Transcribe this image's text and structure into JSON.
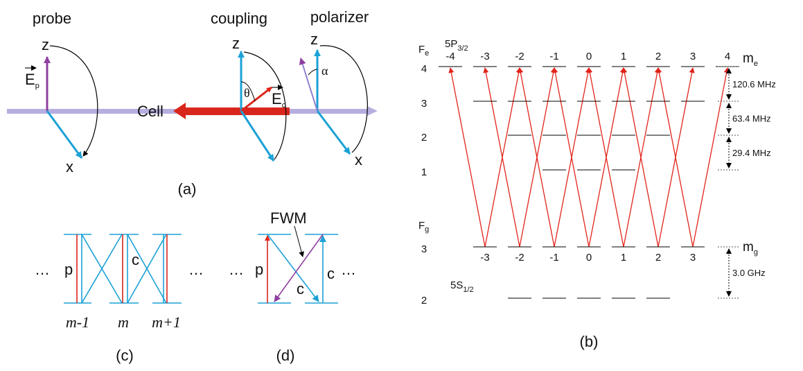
{
  "panel_a": {
    "probe": "probe",
    "coupling": "coupling",
    "polarizer": "polarizer",
    "z_probe": "z",
    "x_probe": "x",
    "z_coupling": "z",
    "z_polarizer": "z",
    "x_polarizer": "x",
    "e_probe": {
      "main": "E",
      "sub": "p"
    },
    "e_coupling": {
      "main": "E",
      "sub": "c"
    },
    "theta": "θ",
    "alpha": "α",
    "cell": "Cell",
    "label": "(a)"
  },
  "panel_c": {
    "dots_left": "…",
    "p": "p",
    "c": "c",
    "dots_right": "…",
    "m_minus": "m-1",
    "m": "m",
    "m_plus": "m+1",
    "label": "(c)"
  },
  "panel_d": {
    "fwm": "FWM",
    "dots_left": "…",
    "p": "p",
    "c_diag": "c",
    "c_right": "c",
    "dots_right": "…",
    "label": "(d)"
  },
  "panel_b": {
    "fe": {
      "main": "F",
      "sub": "e"
    },
    "state_e": {
      "main": "5P",
      "sub": "3/2"
    },
    "me": {
      "main": "m",
      "sub": "e"
    },
    "fg": {
      "main": "F",
      "sub": "g"
    },
    "mg": {
      "main": "m",
      "sub": "g"
    },
    "state_g": {
      "main": "5S",
      "sub": "1/2"
    },
    "upper_m_labels": [
      "-4",
      "-3",
      "-2",
      "-1",
      "0",
      "1",
      "2",
      "3",
      "4"
    ],
    "lower_m_labels": [
      "-3",
      "-2",
      "-1",
      "0",
      "1",
      "2",
      "3"
    ],
    "upper_F_labels": [
      "4",
      "3",
      "2",
      "1"
    ],
    "lower_F_labels": [
      "3",
      "2"
    ],
    "splittings": [
      "120.6 MHz",
      "63.4 MHz",
      "29.4 MHz",
      "3.0 GHz"
    ],
    "label": "(b)"
  }
}
